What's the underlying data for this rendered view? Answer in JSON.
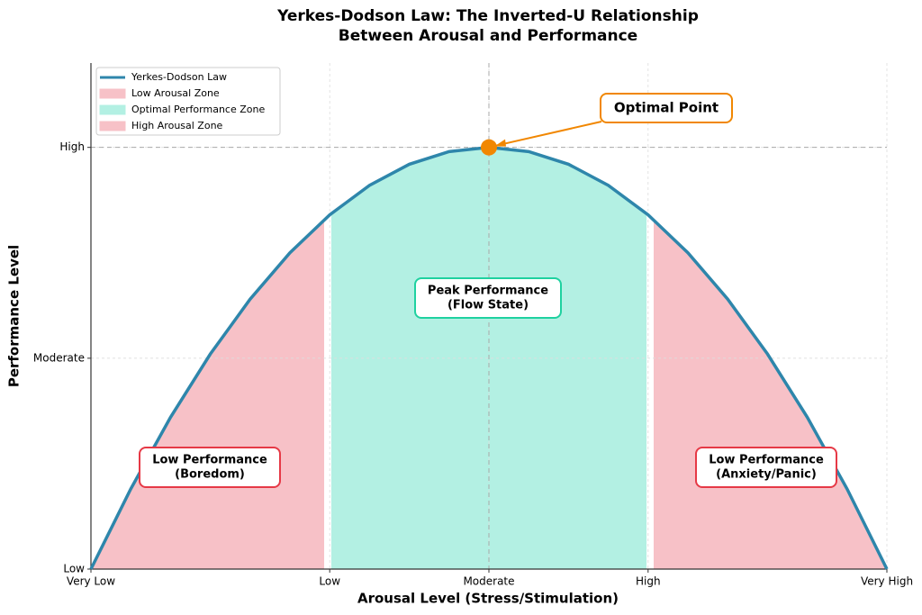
{
  "chart_data": {
    "type": "line",
    "title": [
      "Yerkes-Dodson Law: The Inverted-U Relationship",
      "Between Arousal and Performance"
    ],
    "x_label": "Arousal Level (Stress/Stimulation)",
    "y_label": "Performance Level",
    "xlim": [
      0,
      10
    ],
    "ylim": [
      0,
      12
    ],
    "xticks": [
      {
        "value": 0,
        "label": "Very Low"
      },
      {
        "value": 3,
        "label": "Low"
      },
      {
        "value": 5,
        "label": "Moderate"
      },
      {
        "value": 7,
        "label": "High"
      },
      {
        "value": 10,
        "label": "Very High"
      }
    ],
    "yticks": [
      {
        "value": 0,
        "label": "Low"
      },
      {
        "value": 5,
        "label": "Moderate"
      },
      {
        "value": 10,
        "label": "High"
      }
    ],
    "grid": true,
    "legend": "upper left",
    "x": [
      0,
      0.5,
      1,
      1.5,
      2,
      2.5,
      3,
      3.5,
      4,
      4.5,
      5,
      5.5,
      6,
      6.5,
      7,
      7.5,
      8,
      8.5,
      9,
      9.5,
      10
    ],
    "series": [
      {
        "name": "Yerkes-Dodson Law",
        "color": "#2e86ab",
        "values": [
          0,
          1.9,
          3.6,
          5.1,
          6.4,
          7.5,
          8.4,
          9.1,
          9.6,
          9.9,
          10,
          9.9,
          9.6,
          9.1,
          8.4,
          7.5,
          6.4,
          5.1,
          3.6,
          1.9,
          0
        ]
      }
    ],
    "zones": [
      {
        "name": "Low Arousal Zone",
        "color": "#f7c1c7",
        "range": [
          0,
          2.93
        ]
      },
      {
        "name": "Optimal Performance Zone",
        "color": "#b3f0e3",
        "range": [
          3.02,
          6.98
        ]
      },
      {
        "name": "High Arousal Zone",
        "color": "#f7c1c7",
        "range": [
          7.07,
          10
        ]
      }
    ],
    "optimal_point": {
      "x": 5,
      "y": 10,
      "label": "Optimal Point",
      "color": "#f18701"
    },
    "annotations": [
      {
        "text": [
          "Peak Performance",
          "(Flow State)"
        ],
        "color": "#1fd1a0"
      },
      {
        "text": [
          "Low Performance",
          "(Boredom)"
        ],
        "color": "#e63946"
      },
      {
        "text": [
          "Low Performance",
          "(Anxiety/Panic)"
        ],
        "color": "#e63946"
      }
    ]
  }
}
